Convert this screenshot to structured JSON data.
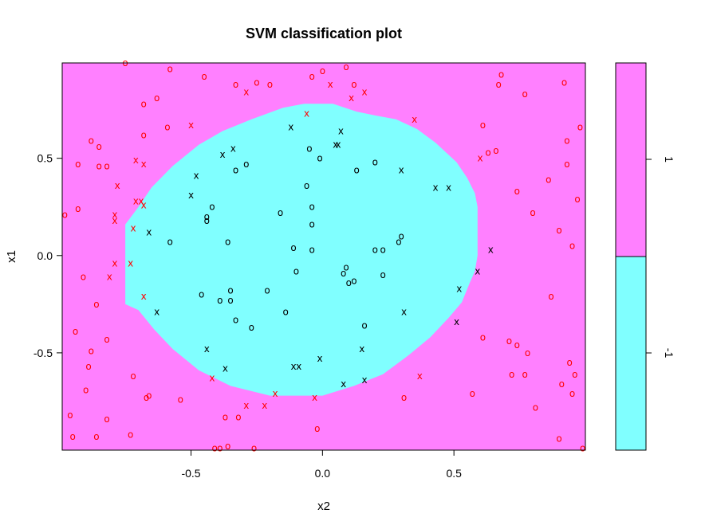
{
  "chart_data": {
    "type": "scatter",
    "title": "SVM classification plot",
    "xlabel": "x2",
    "ylabel": "x1",
    "xlim": [
      -0.99,
      1.0
    ],
    "ylim": [
      -1.0,
      0.99
    ],
    "x_ticks": [
      -0.5,
      0.0,
      0.5
    ],
    "y_ticks": [
      -0.5,
      0.0,
      0.5
    ],
    "legend": {
      "position": "right",
      "labels": [
        "1",
        "-1"
      ]
    },
    "colors": {
      "class_pos": "#ff80ff",
      "class_neg": "#80ffff",
      "pt_pos": "#ff0000",
      "pt_neg": "#000000"
    },
    "decision_region_polygon": [
      [
        -0.07,
        0.78
      ],
      [
        0.04,
        0.78
      ],
      [
        0.13,
        0.74
      ],
      [
        0.2,
        0.72
      ],
      [
        0.28,
        0.7
      ],
      [
        0.36,
        0.65
      ],
      [
        0.43,
        0.58
      ],
      [
        0.51,
        0.48
      ],
      [
        0.55,
        0.4
      ],
      [
        0.58,
        0.32
      ],
      [
        0.59,
        0.25
      ],
      [
        0.59,
        0.0
      ],
      [
        0.58,
        -0.08
      ],
      [
        0.56,
        -0.14
      ],
      [
        0.53,
        -0.24
      ],
      [
        0.48,
        -0.32
      ],
      [
        0.41,
        -0.42
      ],
      [
        0.33,
        -0.51
      ],
      [
        0.23,
        -0.61
      ],
      [
        0.12,
        -0.67
      ],
      [
        0.0,
        -0.72
      ],
      [
        -0.2,
        -0.72
      ],
      [
        -0.35,
        -0.67
      ],
      [
        -0.47,
        -0.59
      ],
      [
        -0.57,
        -0.48
      ],
      [
        -0.64,
        -0.38
      ],
      [
        -0.7,
        -0.28
      ],
      [
        -0.75,
        -0.25
      ],
      [
        -0.75,
        0.16
      ],
      [
        -0.7,
        0.25
      ],
      [
        -0.65,
        0.35
      ],
      [
        -0.57,
        0.46
      ],
      [
        -0.47,
        0.57
      ],
      [
        -0.38,
        0.64
      ],
      [
        -0.27,
        0.7
      ],
      [
        -0.15,
        0.76
      ]
    ],
    "points": [
      {
        "x": -0.75,
        "y": 0.99,
        "m": "o",
        "c": "pos"
      },
      {
        "x": -0.58,
        "y": 0.96,
        "m": "o",
        "c": "pos"
      },
      {
        "x": -0.45,
        "y": 0.92,
        "m": "o",
        "c": "pos"
      },
      {
        "x": -0.33,
        "y": 0.88,
        "m": "o",
        "c": "pos"
      },
      {
        "x": -0.25,
        "y": 0.89,
        "m": "o",
        "c": "pos"
      },
      {
        "x": -0.2,
        "y": 0.88,
        "m": "o",
        "c": "pos"
      },
      {
        "x": -0.29,
        "y": 0.84,
        "m": "x",
        "c": "pos"
      },
      {
        "x": 0.0,
        "y": 0.95,
        "m": "o",
        "c": "pos"
      },
      {
        "x": -0.04,
        "y": 0.92,
        "m": "o",
        "c": "pos"
      },
      {
        "x": 0.09,
        "y": 0.97,
        "m": "o",
        "c": "pos"
      },
      {
        "x": 0.03,
        "y": 0.88,
        "m": "x",
        "c": "pos"
      },
      {
        "x": 0.12,
        "y": 0.88,
        "m": "o",
        "c": "pos"
      },
      {
        "x": 0.16,
        "y": 0.84,
        "m": "x",
        "c": "pos"
      },
      {
        "x": 0.11,
        "y": 0.81,
        "m": "x",
        "c": "pos"
      },
      {
        "x": 0.68,
        "y": 0.93,
        "m": "o",
        "c": "pos"
      },
      {
        "x": 0.67,
        "y": 0.88,
        "m": "o",
        "c": "pos"
      },
      {
        "x": 0.92,
        "y": 0.89,
        "m": "o",
        "c": "pos"
      },
      {
        "x": 0.77,
        "y": 0.83,
        "m": "o",
        "c": "pos"
      },
      {
        "x": -0.68,
        "y": 0.78,
        "m": "o",
        "c": "pos"
      },
      {
        "x": -0.63,
        "y": 0.81,
        "m": "o",
        "c": "pos"
      },
      {
        "x": -0.59,
        "y": 0.66,
        "m": "o",
        "c": "pos"
      },
      {
        "x": -0.68,
        "y": 0.62,
        "m": "o",
        "c": "pos"
      },
      {
        "x": -0.5,
        "y": 0.67,
        "m": "x",
        "c": "pos"
      },
      {
        "x": -0.06,
        "y": 0.73,
        "m": "x",
        "c": "pos"
      },
      {
        "x": 0.35,
        "y": 0.7,
        "m": "x",
        "c": "pos"
      },
      {
        "x": 0.61,
        "y": 0.67,
        "m": "o",
        "c": "pos"
      },
      {
        "x": 0.98,
        "y": 0.66,
        "m": "o",
        "c": "pos"
      },
      {
        "x": -0.88,
        "y": 0.59,
        "m": "o",
        "c": "pos"
      },
      {
        "x": -0.85,
        "y": 0.56,
        "m": "o",
        "c": "pos"
      },
      {
        "x": -0.93,
        "y": 0.47,
        "m": "o",
        "c": "pos"
      },
      {
        "x": -0.85,
        "y": 0.46,
        "m": "o",
        "c": "pos"
      },
      {
        "x": -0.82,
        "y": 0.46,
        "m": "o",
        "c": "pos"
      },
      {
        "x": -0.71,
        "y": 0.49,
        "m": "x",
        "c": "pos"
      },
      {
        "x": -0.68,
        "y": 0.47,
        "m": "x",
        "c": "pos"
      },
      {
        "x": 0.93,
        "y": 0.59,
        "m": "o",
        "c": "pos"
      },
      {
        "x": 0.63,
        "y": 0.53,
        "m": "o",
        "c": "pos"
      },
      {
        "x": 0.66,
        "y": 0.54,
        "m": "o",
        "c": "pos"
      },
      {
        "x": 0.6,
        "y": 0.5,
        "m": "x",
        "c": "pos"
      },
      {
        "x": 0.93,
        "y": 0.47,
        "m": "o",
        "c": "pos"
      },
      {
        "x": -0.78,
        "y": 0.36,
        "m": "x",
        "c": "pos"
      },
      {
        "x": -0.71,
        "y": 0.28,
        "m": "x",
        "c": "pos"
      },
      {
        "x": -0.69,
        "y": 0.28,
        "m": "x",
        "c": "pos"
      },
      {
        "x": -0.68,
        "y": 0.26,
        "m": "x",
        "c": "pos"
      },
      {
        "x": -0.93,
        "y": 0.24,
        "m": "o",
        "c": "pos"
      },
      {
        "x": -0.98,
        "y": 0.21,
        "m": "o",
        "c": "pos"
      },
      {
        "x": -0.79,
        "y": 0.21,
        "m": "x",
        "c": "pos"
      },
      {
        "x": -0.79,
        "y": 0.18,
        "m": "x",
        "c": "pos"
      },
      {
        "x": -0.72,
        "y": 0.14,
        "m": "x",
        "c": "pos"
      },
      {
        "x": 0.86,
        "y": 0.39,
        "m": "o",
        "c": "pos"
      },
      {
        "x": 0.74,
        "y": 0.33,
        "m": "o",
        "c": "pos"
      },
      {
        "x": 0.97,
        "y": 0.29,
        "m": "o",
        "c": "pos"
      },
      {
        "x": 0.8,
        "y": 0.22,
        "m": "o",
        "c": "pos"
      },
      {
        "x": 0.9,
        "y": 0.13,
        "m": "o",
        "c": "pos"
      },
      {
        "x": 0.95,
        "y": 0.05,
        "m": "o",
        "c": "pos"
      },
      {
        "x": -0.79,
        "y": -0.04,
        "m": "x",
        "c": "pos"
      },
      {
        "x": -0.73,
        "y": -0.04,
        "m": "x",
        "c": "pos"
      },
      {
        "x": -0.91,
        "y": -0.11,
        "m": "o",
        "c": "pos"
      },
      {
        "x": -0.81,
        "y": -0.11,
        "m": "x",
        "c": "pos"
      },
      {
        "x": -0.86,
        "y": -0.25,
        "m": "o",
        "c": "pos"
      },
      {
        "x": -0.68,
        "y": -0.21,
        "m": "x",
        "c": "pos"
      },
      {
        "x": 0.87,
        "y": -0.21,
        "m": "o",
        "c": "pos"
      },
      {
        "x": -0.94,
        "y": -0.39,
        "m": "o",
        "c": "pos"
      },
      {
        "x": -0.82,
        "y": -0.43,
        "m": "o",
        "c": "pos"
      },
      {
        "x": -0.88,
        "y": -0.49,
        "m": "o",
        "c": "pos"
      },
      {
        "x": -0.89,
        "y": -0.57,
        "m": "o",
        "c": "pos"
      },
      {
        "x": 0.61,
        "y": -0.42,
        "m": "o",
        "c": "pos"
      },
      {
        "x": 0.71,
        "y": -0.44,
        "m": "o",
        "c": "pos"
      },
      {
        "x": 0.74,
        "y": -0.46,
        "m": "o",
        "c": "pos"
      },
      {
        "x": 0.78,
        "y": -0.5,
        "m": "o",
        "c": "pos"
      },
      {
        "x": 0.94,
        "y": -0.55,
        "m": "o",
        "c": "pos"
      },
      {
        "x": 0.72,
        "y": -0.61,
        "m": "o",
        "c": "pos"
      },
      {
        "x": 0.77,
        "y": -0.61,
        "m": "o",
        "c": "pos"
      },
      {
        "x": 0.96,
        "y": -0.61,
        "m": "o",
        "c": "pos"
      },
      {
        "x": -0.72,
        "y": -0.62,
        "m": "o",
        "c": "pos"
      },
      {
        "x": -0.42,
        "y": -0.63,
        "m": "x",
        "c": "pos"
      },
      {
        "x": 0.37,
        "y": -0.62,
        "m": "x",
        "c": "pos"
      },
      {
        "x": 0.91,
        "y": -0.66,
        "m": "o",
        "c": "pos"
      },
      {
        "x": -0.9,
        "y": -0.69,
        "m": "o",
        "c": "pos"
      },
      {
        "x": -0.66,
        "y": -0.72,
        "m": "o",
        "c": "pos"
      },
      {
        "x": -0.67,
        "y": -0.73,
        "m": "o",
        "c": "pos"
      },
      {
        "x": -0.54,
        "y": -0.74,
        "m": "o",
        "c": "pos"
      },
      {
        "x": -0.18,
        "y": -0.71,
        "m": "x",
        "c": "pos"
      },
      {
        "x": -0.03,
        "y": -0.73,
        "m": "x",
        "c": "pos"
      },
      {
        "x": 0.31,
        "y": -0.73,
        "m": "o",
        "c": "pos"
      },
      {
        "x": 0.57,
        "y": -0.71,
        "m": "o",
        "c": "pos"
      },
      {
        "x": 0.95,
        "y": -0.71,
        "m": "o",
        "c": "pos"
      },
      {
        "x": -0.29,
        "y": -0.77,
        "m": "x",
        "c": "pos"
      },
      {
        "x": -0.22,
        "y": -0.77,
        "m": "x",
        "c": "pos"
      },
      {
        "x": 0.81,
        "y": -0.78,
        "m": "o",
        "c": "pos"
      },
      {
        "x": -0.96,
        "y": -0.82,
        "m": "o",
        "c": "pos"
      },
      {
        "x": -0.82,
        "y": -0.84,
        "m": "o",
        "c": "pos"
      },
      {
        "x": -0.37,
        "y": -0.83,
        "m": "o",
        "c": "pos"
      },
      {
        "x": -0.32,
        "y": -0.83,
        "m": "o",
        "c": "pos"
      },
      {
        "x": -0.02,
        "y": -0.89,
        "m": "o",
        "c": "pos"
      },
      {
        "x": -0.95,
        "y": -0.93,
        "m": "o",
        "c": "pos"
      },
      {
        "x": -0.86,
        "y": -0.93,
        "m": "o",
        "c": "pos"
      },
      {
        "x": -0.73,
        "y": -0.92,
        "m": "o",
        "c": "pos"
      },
      {
        "x": 0.9,
        "y": -0.94,
        "m": "o",
        "c": "pos"
      },
      {
        "x": -0.41,
        "y": -0.99,
        "m": "o",
        "c": "pos"
      },
      {
        "x": -0.39,
        "y": -0.99,
        "m": "o",
        "c": "pos"
      },
      {
        "x": -0.36,
        "y": -0.98,
        "m": "o",
        "c": "pos"
      },
      {
        "x": -0.26,
        "y": -0.99,
        "m": "o",
        "c": "pos"
      },
      {
        "x": 0.99,
        "y": -0.99,
        "m": "o",
        "c": "pos"
      },
      {
        "x": -0.12,
        "y": 0.66,
        "m": "x",
        "c": "neg"
      },
      {
        "x": 0.07,
        "y": 0.64,
        "m": "x",
        "c": "neg"
      },
      {
        "x": 0.05,
        "y": 0.57,
        "m": "x",
        "c": "neg"
      },
      {
        "x": 0.06,
        "y": 0.57,
        "m": "x",
        "c": "neg"
      },
      {
        "x": -0.34,
        "y": 0.55,
        "m": "x",
        "c": "neg"
      },
      {
        "x": -0.38,
        "y": 0.52,
        "m": "x",
        "c": "neg"
      },
      {
        "x": -0.05,
        "y": 0.55,
        "m": "o",
        "c": "neg"
      },
      {
        "x": -0.01,
        "y": 0.5,
        "m": "o",
        "c": "neg"
      },
      {
        "x": -0.29,
        "y": 0.47,
        "m": "o",
        "c": "neg"
      },
      {
        "x": -0.33,
        "y": 0.44,
        "m": "o",
        "c": "neg"
      },
      {
        "x": 0.2,
        "y": 0.48,
        "m": "o",
        "c": "neg"
      },
      {
        "x": 0.13,
        "y": 0.44,
        "m": "o",
        "c": "neg"
      },
      {
        "x": 0.3,
        "y": 0.44,
        "m": "x",
        "c": "neg"
      },
      {
        "x": -0.48,
        "y": 0.41,
        "m": "x",
        "c": "neg"
      },
      {
        "x": -0.06,
        "y": 0.36,
        "m": "o",
        "c": "neg"
      },
      {
        "x": 0.43,
        "y": 0.35,
        "m": "x",
        "c": "neg"
      },
      {
        "x": 0.48,
        "y": 0.35,
        "m": "x",
        "c": "neg"
      },
      {
        "x": -0.5,
        "y": 0.31,
        "m": "x",
        "c": "neg"
      },
      {
        "x": -0.42,
        "y": 0.25,
        "m": "o",
        "c": "neg"
      },
      {
        "x": -0.04,
        "y": 0.25,
        "m": "o",
        "c": "neg"
      },
      {
        "x": -0.44,
        "y": 0.2,
        "m": "o",
        "c": "neg"
      },
      {
        "x": -0.44,
        "y": 0.18,
        "m": "o",
        "c": "neg"
      },
      {
        "x": -0.16,
        "y": 0.22,
        "m": "o",
        "c": "neg"
      },
      {
        "x": -0.04,
        "y": 0.16,
        "m": "o",
        "c": "neg"
      },
      {
        "x": -0.66,
        "y": 0.12,
        "m": "x",
        "c": "neg"
      },
      {
        "x": -0.58,
        "y": 0.07,
        "m": "o",
        "c": "neg"
      },
      {
        "x": -0.36,
        "y": 0.07,
        "m": "o",
        "c": "neg"
      },
      {
        "x": 0.3,
        "y": 0.1,
        "m": "o",
        "c": "neg"
      },
      {
        "x": 0.29,
        "y": 0.07,
        "m": "o",
        "c": "neg"
      },
      {
        "x": -0.11,
        "y": 0.04,
        "m": "o",
        "c": "neg"
      },
      {
        "x": -0.04,
        "y": 0.03,
        "m": "o",
        "c": "neg"
      },
      {
        "x": 0.2,
        "y": 0.03,
        "m": "o",
        "c": "neg"
      },
      {
        "x": 0.23,
        "y": 0.03,
        "m": "o",
        "c": "neg"
      },
      {
        "x": 0.64,
        "y": 0.03,
        "m": "x",
        "c": "neg"
      },
      {
        "x": 0.09,
        "y": -0.06,
        "m": "o",
        "c": "neg"
      },
      {
        "x": -0.1,
        "y": -0.08,
        "m": "o",
        "c": "neg"
      },
      {
        "x": 0.08,
        "y": -0.09,
        "m": "o",
        "c": "neg"
      },
      {
        "x": 0.59,
        "y": -0.08,
        "m": "x",
        "c": "neg"
      },
      {
        "x": 0.23,
        "y": -0.1,
        "m": "o",
        "c": "neg"
      },
      {
        "x": 0.12,
        "y": -0.13,
        "m": "o",
        "c": "neg"
      },
      {
        "x": 0.1,
        "y": -0.14,
        "m": "o",
        "c": "neg"
      },
      {
        "x": -0.35,
        "y": -0.18,
        "m": "o",
        "c": "neg"
      },
      {
        "x": -0.21,
        "y": -0.18,
        "m": "o",
        "c": "neg"
      },
      {
        "x": 0.52,
        "y": -0.17,
        "m": "x",
        "c": "neg"
      },
      {
        "x": -0.46,
        "y": -0.2,
        "m": "o",
        "c": "neg"
      },
      {
        "x": -0.39,
        "y": -0.23,
        "m": "o",
        "c": "neg"
      },
      {
        "x": -0.35,
        "y": -0.23,
        "m": "o",
        "c": "neg"
      },
      {
        "x": -0.63,
        "y": -0.29,
        "m": "x",
        "c": "neg"
      },
      {
        "x": -0.14,
        "y": -0.29,
        "m": "o",
        "c": "neg"
      },
      {
        "x": 0.31,
        "y": -0.29,
        "m": "x",
        "c": "neg"
      },
      {
        "x": -0.33,
        "y": -0.33,
        "m": "o",
        "c": "neg"
      },
      {
        "x": -0.27,
        "y": -0.37,
        "m": "o",
        "c": "neg"
      },
      {
        "x": 0.16,
        "y": -0.36,
        "m": "o",
        "c": "neg"
      },
      {
        "x": 0.51,
        "y": -0.34,
        "m": "x",
        "c": "neg"
      },
      {
        "x": -0.44,
        "y": -0.48,
        "m": "x",
        "c": "neg"
      },
      {
        "x": 0.15,
        "y": -0.48,
        "m": "x",
        "c": "neg"
      },
      {
        "x": -0.01,
        "y": -0.53,
        "m": "x",
        "c": "neg"
      },
      {
        "x": -0.11,
        "y": -0.57,
        "m": "x",
        "c": "neg"
      },
      {
        "x": -0.09,
        "y": -0.57,
        "m": "x",
        "c": "neg"
      },
      {
        "x": -0.37,
        "y": -0.58,
        "m": "x",
        "c": "neg"
      },
      {
        "x": 0.16,
        "y": -0.64,
        "m": "x",
        "c": "neg"
      },
      {
        "x": 0.08,
        "y": -0.66,
        "m": "x",
        "c": "neg"
      }
    ]
  }
}
